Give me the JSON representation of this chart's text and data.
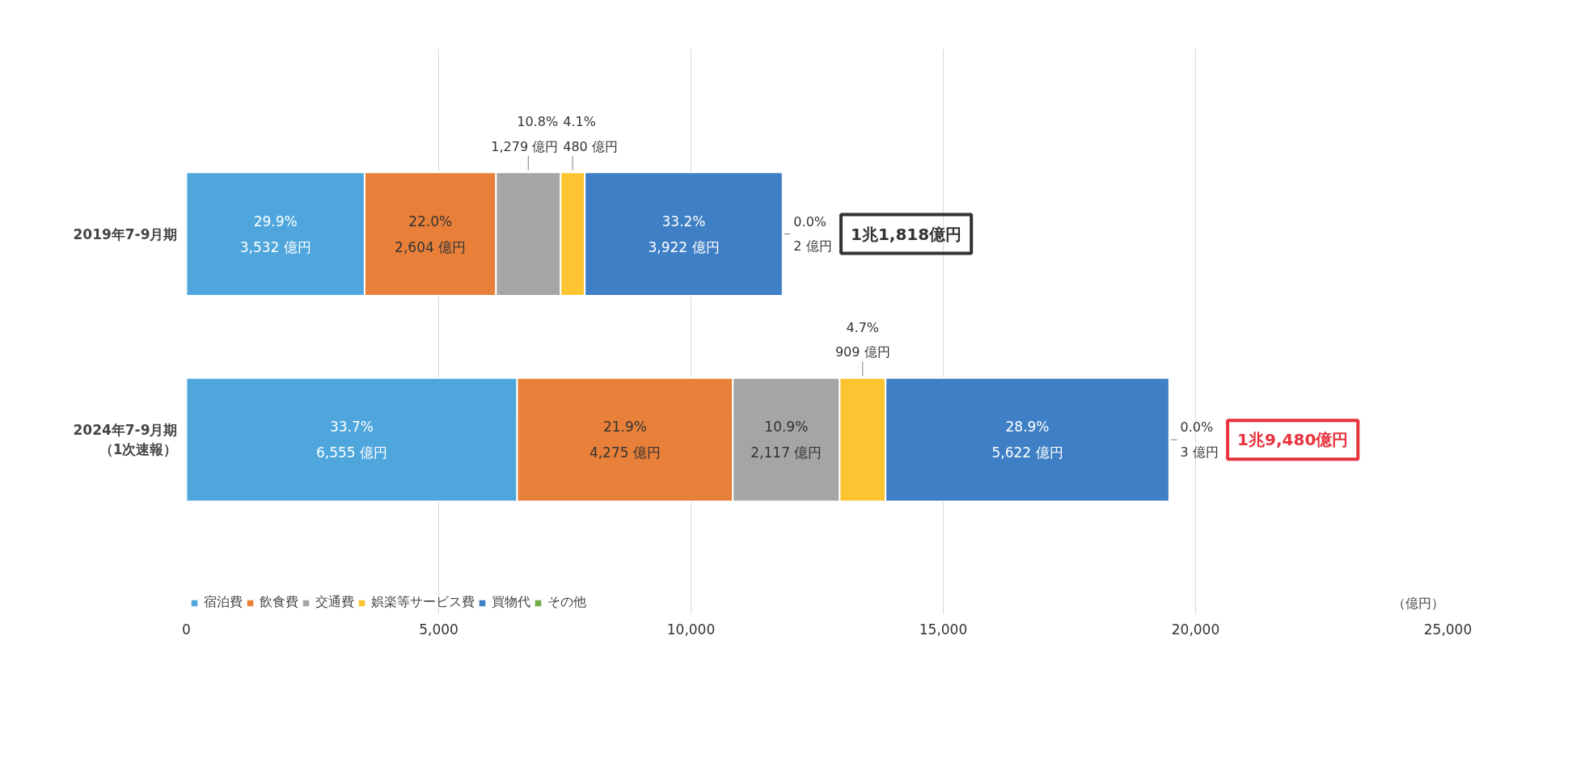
{
  "chart_data": {
    "type": "bar",
    "orientation": "horizontal",
    "stacked": true,
    "categories": [
      "2019年7-9月期",
      "2024年7-9月期（1次速報）"
    ],
    "series": [
      {
        "name": "宿泊費",
        "color": "#4ea6dc",
        "values": [
          3532,
          6555
        ],
        "value_labels": [
          "29.9%\n3,532 億円",
          "33.7%\n6,555 億円"
        ]
      },
      {
        "name": "飲食費",
        "color": "#e8803a",
        "values": [
          2604,
          4275
        ],
        "value_labels": [
          "22.0%\n2,604 億円",
          "21.9%\n4,275 億円"
        ]
      },
      {
        "name": "交通費",
        "color": "#a5a5a5",
        "values": [
          1279,
          2117
        ],
        "value_labels": [
          "10.8%\n1,279 億円",
          "10.9%\n2,117 億円"
        ]
      },
      {
        "name": "娯楽等サービス費",
        "color": "#fbc430",
        "values": [
          480,
          909
        ],
        "value_labels": [
          "4.1%\n480 億円",
          "4.7%\n909 億円"
        ]
      },
      {
        "name": "買物代",
        "color": "#3f7fc5",
        "values": [
          3922,
          5622
        ],
        "value_labels": [
          "33.2%\n3,922 億円",
          "28.9%\n5,622 億円"
        ]
      },
      {
        "name": "その他",
        "color": "#70ad47",
        "values": [
          2,
          3
        ],
        "value_labels": [
          "0.0%\n2 億円",
          "0.0%\n3 億円"
        ]
      }
    ],
    "annotations": [
      "1兆1,818億円",
      "1兆9,480億円"
    ],
    "xlabel": "（億円）",
    "xlim": [
      0,
      25000
    ],
    "xticks": [
      0,
      {
        "value": 5000,
        "label": "5,000"
      },
      {
        "value": 10000,
        "label": "10,000"
      },
      {
        "value": 15000,
        "label": "15,000"
      },
      {
        "value": 20000,
        "label": "20,000"
      },
      {
        "value": 25000,
        "label": "25,000"
      }
    ],
    "grid": "x",
    "legend": "bottom"
  }
}
